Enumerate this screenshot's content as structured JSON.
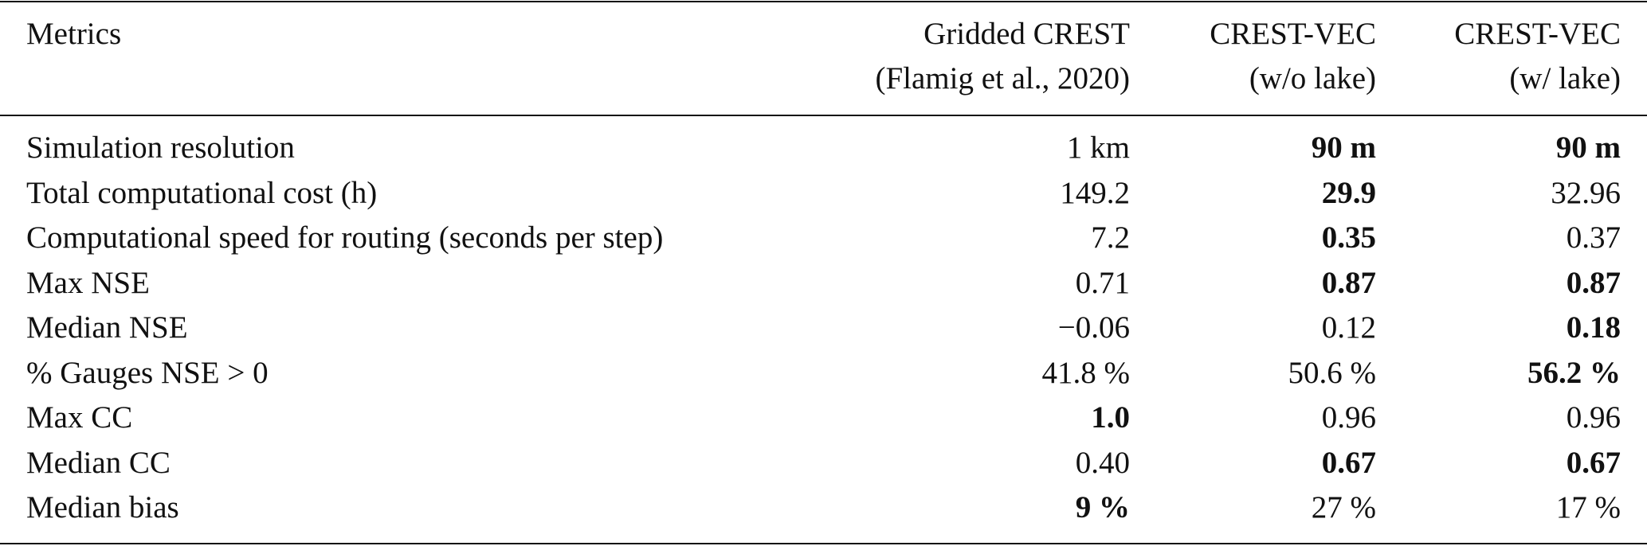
{
  "table": {
    "header": [
      [
        "Metrics"
      ],
      [
        "Gridded CREST",
        "(Flamig et al., 2020)"
      ],
      [
        "CREST-VEC",
        "(w/o lake)"
      ],
      [
        "CREST-VEC",
        "(w/ lake)"
      ]
    ],
    "rows": [
      [
        "Simulation resolution",
        "1 km",
        "90 m",
        "90 m"
      ],
      [
        "Total computational cost (h)",
        "149.2",
        "29.9",
        "32.96"
      ],
      [
        "Computational speed for routing (seconds per step)",
        "7.2",
        "0.35",
        "0.37"
      ],
      [
        "Max NSE",
        "0.71",
        "0.87",
        "0.87"
      ],
      [
        "Median NSE",
        "−0.06",
        "0.12",
        "0.18"
      ],
      [
        "% Gauges NSE > 0",
        "41.8 %",
        "50.6 %",
        "56.2 %"
      ],
      [
        "Max CC",
        "1.0",
        "0.96",
        "0.96"
      ],
      [
        "Median CC",
        "0.40",
        "0.67",
        "0.67"
      ],
      [
        "Median bias",
        "9 %",
        "27 %",
        "17 %"
      ]
    ],
    "bold": [
      [
        false,
        false,
        true,
        true
      ],
      [
        false,
        false,
        true,
        false
      ],
      [
        false,
        false,
        true,
        false
      ],
      [
        false,
        false,
        true,
        true
      ],
      [
        false,
        false,
        false,
        true
      ],
      [
        false,
        false,
        false,
        true
      ],
      [
        false,
        true,
        false,
        false
      ],
      [
        false,
        false,
        true,
        true
      ],
      [
        false,
        true,
        false,
        false
      ]
    ]
  }
}
